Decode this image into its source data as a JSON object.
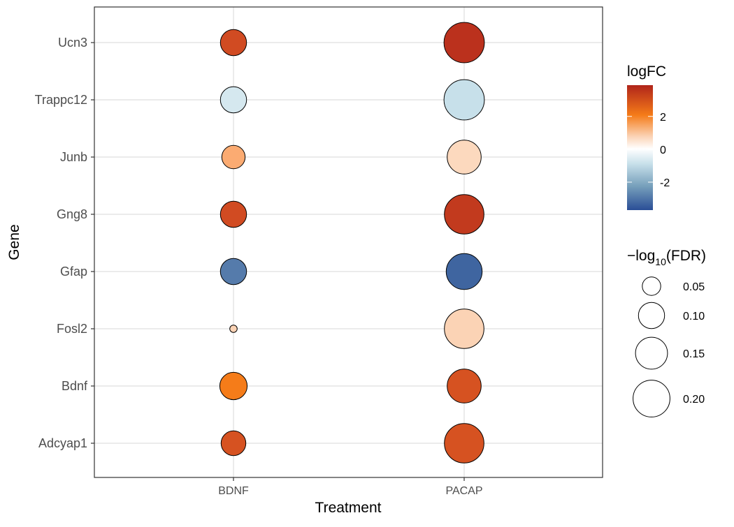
{
  "chart_data": {
    "type": "scatter",
    "xlabel": "Treatment",
    "ylabel": "Gene",
    "categories_x": [
      "BDNF",
      "PACAP"
    ],
    "categories_y": [
      "Adcyap1",
      "Bdnf",
      "Fosl2",
      "Gfap",
      "Gng8",
      "Junb",
      "Trappc12",
      "Ucn3"
    ],
    "grid": true,
    "points": [
      {
        "treatment": "BDNF",
        "gene": "Ucn3",
        "logFC": 3.0,
        "neg_log10_fdr": 0.1
      },
      {
        "treatment": "PACAP",
        "gene": "Ucn3",
        "logFC": 3.6,
        "neg_log10_fdr": 0.24
      },
      {
        "treatment": "BDNF",
        "gene": "Trappc12",
        "logFC": -0.6,
        "neg_log10_fdr": 0.1
      },
      {
        "treatment": "PACAP",
        "gene": "Trappc12",
        "logFC": -0.8,
        "neg_log10_fdr": 0.24
      },
      {
        "treatment": "BDNF",
        "gene": "Junb",
        "logFC": 1.6,
        "neg_log10_fdr": 0.08
      },
      {
        "treatment": "PACAP",
        "gene": "Junb",
        "logFC": 0.7,
        "neg_log10_fdr": 0.17
      },
      {
        "treatment": "BDNF",
        "gene": "Gng8",
        "logFC": 3.0,
        "neg_log10_fdr": 0.1
      },
      {
        "treatment": "PACAP",
        "gene": "Gng8",
        "logFC": 3.4,
        "neg_log10_fdr": 0.23
      },
      {
        "treatment": "BDNF",
        "gene": "Gfap",
        "logFC": -2.9,
        "neg_log10_fdr": 0.1
      },
      {
        "treatment": "PACAP",
        "gene": "Gfap",
        "logFC": -3.3,
        "neg_log10_fdr": 0.19
      },
      {
        "treatment": "BDNF",
        "gene": "Fosl2",
        "logFC": 0.8,
        "neg_log10_fdr": 0.008
      },
      {
        "treatment": "PACAP",
        "gene": "Fosl2",
        "logFC": 0.8,
        "neg_log10_fdr": 0.23
      },
      {
        "treatment": "BDNF",
        "gene": "Bdnf",
        "logFC": 2.3,
        "neg_log10_fdr": 0.11
      },
      {
        "treatment": "PACAP",
        "gene": "Bdnf",
        "logFC": 2.9,
        "neg_log10_fdr": 0.17
      },
      {
        "treatment": "BDNF",
        "gene": "Adcyap1",
        "logFC": 2.9,
        "neg_log10_fdr": 0.09
      },
      {
        "treatment": "PACAP",
        "gene": "Adcyap1",
        "logFC": 2.9,
        "neg_log10_fdr": 0.23
      }
    ],
    "color_legend": {
      "title": "logFC",
      "ticks": [
        2,
        0,
        -2
      ],
      "tick_labels": [
        "2",
        "0",
        "-2"
      ],
      "range": [
        -3.7,
        3.9
      ],
      "colors": {
        "low": "#2a4e96",
        "mid": "#ffffff",
        "high": "#b0241a",
        "orange": "#f57c19"
      },
      "placement": "right"
    },
    "size_legend": {
      "title_prefix": "−log",
      "title_sub": "10",
      "title_suffix": "(FDR)",
      "breaks": [
        0.05,
        0.1,
        0.15,
        0.2
      ],
      "labels": [
        "0.05",
        "0.10",
        "0.15",
        "0.20"
      ],
      "placement": "right"
    }
  }
}
